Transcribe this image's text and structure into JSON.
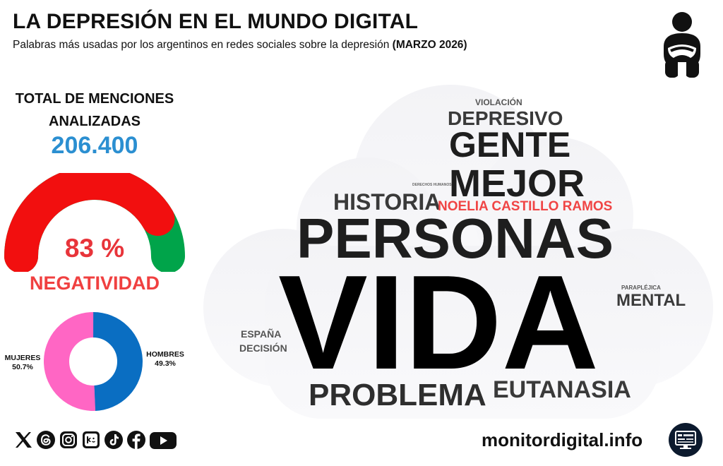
{
  "header": {
    "title": "LA DEPRESIÓN EN EL MUNDO DIGITAL",
    "subtitle": "Palabras más usadas por los argentinos en redes sociales sobre la depresión ",
    "subtitle_bold": "(MARZO 2026)"
  },
  "summary": {
    "total_label": "TOTAL DE MENCIONES ANALIZADAS",
    "total_value": "206.400",
    "negativity_value": "83 %",
    "negativity_fraction": 0.83,
    "negativity_label": "NEGATIVIDAD",
    "colors": {
      "negative": "#f20f0f",
      "positive": "#00a44a",
      "total": "#2b8fd1"
    }
  },
  "gender": {
    "women_label": "MUJERES",
    "women_value": "50.7%",
    "women_fraction": 0.507,
    "men_label": "HOMBRES",
    "men_value": "49.3%",
    "men_fraction": 0.493,
    "colors": {
      "women": "#ff66c4",
      "men": "#0a6ec2"
    }
  },
  "wordcloud": [
    {
      "text": "VIOLACIÓN"
    },
    {
      "text": "DEPRESIVO"
    },
    {
      "text": "GENTE"
    },
    {
      "text": "DERECHOS HUMANOS"
    },
    {
      "text": "MEJOR"
    },
    {
      "text": "HISTORIA"
    },
    {
      "text": "NOELIA CASTILLO RAMOS",
      "color": "#f04545"
    },
    {
      "text": "PERSONAS"
    },
    {
      "text": "VIDA"
    },
    {
      "text": "PARAPLÉJICA"
    },
    {
      "text": "MENTAL"
    },
    {
      "text": "ESPAÑA"
    },
    {
      "text": "DECISIÓN"
    },
    {
      "text": "PROBLEMA"
    },
    {
      "text": "EUTANASIA"
    }
  ],
  "footer": {
    "site": "monitordigital.info",
    "social_icons": [
      "x-icon",
      "threads-icon",
      "instagram-icon",
      "kick-icon",
      "tiktok-icon",
      "facebook-icon",
      "youtube-icon"
    ]
  }
}
